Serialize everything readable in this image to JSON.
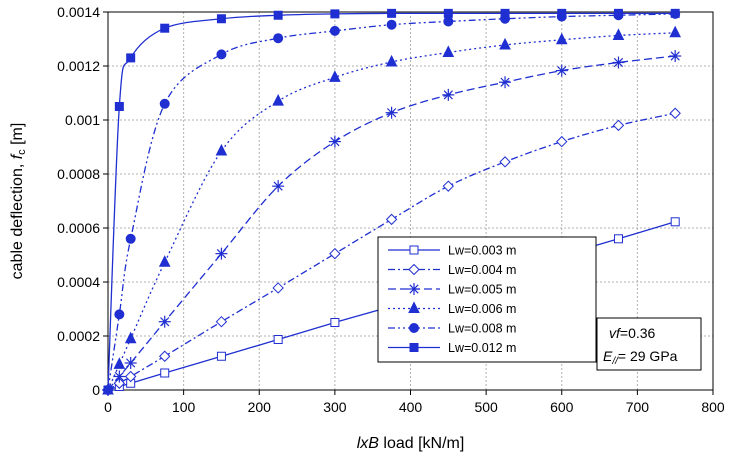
{
  "chart_data": {
    "type": "line",
    "xlabel": {
      "italic": "lxB",
      "rest": " load  [kN/m]"
    },
    "ylabel": {
      "pre": "cable deflection, ",
      "italic": "f",
      "sub": "c",
      "post": " [m]"
    },
    "xlim": [
      0,
      800
    ],
    "ylim": [
      0,
      0.0014
    ],
    "xticks": [
      "0",
      "100",
      "200",
      "300",
      "400",
      "500",
      "600",
      "700",
      "800"
    ],
    "yticks": [
      "0",
      "0.0002",
      "0.0004",
      "0.0006",
      "0.0008",
      "0.001",
      "0.0012",
      "0.0014"
    ],
    "grid": true,
    "legend_position": "inside-lower-right",
    "color": "#1f2fd1",
    "series": [
      {
        "name": "Lw=0.003 m",
        "marker": "square-open",
        "dash": "solid",
        "x": [
          0,
          15,
          30,
          75,
          150,
          225,
          300,
          375,
          450,
          525,
          600,
          675,
          750
        ],
        "y": [
          0,
          1.3e-05,
          2.5e-05,
          6.3e-05,
          0.000125,
          0.000187,
          0.00025,
          0.00031,
          0.000375,
          0.000435,
          0.000498,
          0.00056,
          0.000623
        ]
      },
      {
        "name": "Lw=0.004 m",
        "marker": "diamond-open",
        "dash": "dashdot",
        "x": [
          0,
          15,
          30,
          75,
          150,
          225,
          300,
          375,
          450,
          525,
          600,
          675,
          750
        ],
        "y": [
          0,
          2.5e-05,
          5e-05,
          0.000125,
          0.000253,
          0.000378,
          0.000505,
          0.000632,
          0.000755,
          0.000845,
          0.00092,
          0.00098,
          0.001025
        ]
      },
      {
        "name": "Lw=0.005 m",
        "marker": "star",
        "dash": "dash",
        "x": [
          0,
          15,
          30,
          75,
          150,
          225,
          300,
          375,
          450,
          525,
          600,
          675,
          750
        ],
        "y": [
          0,
          5e-05,
          0.0001,
          0.000253,
          0.000505,
          0.000755,
          0.00092,
          0.001027,
          0.001093,
          0.00114,
          0.001183,
          0.001213,
          0.001237
        ]
      },
      {
        "name": "Lw=0.006 m",
        "marker": "triangle",
        "dash": "dot",
        "x": [
          0,
          15,
          30,
          75,
          150,
          225,
          300,
          375,
          450,
          525,
          600,
          675,
          750
        ],
        "y": [
          0,
          9.5e-05,
          0.00019,
          0.000473,
          0.000885,
          0.00107,
          0.001158,
          0.001215,
          0.00125,
          0.001278,
          0.001297,
          0.001313,
          0.001323
        ]
      },
      {
        "name": "Lw=0.008 m",
        "marker": "circle",
        "dash": "dashdotdot",
        "x": [
          0,
          15,
          30,
          75,
          150,
          225,
          300,
          375,
          450,
          525,
          600,
          675,
          750
        ],
        "y": [
          0,
          0.00028,
          0.00056,
          0.00106,
          0.001243,
          0.001303,
          0.00133,
          0.001353,
          0.001365,
          0.001375,
          0.001383,
          0.001388,
          0.001393
        ]
      },
      {
        "name": "Lw=0.012 m",
        "marker": "square",
        "dash": "solid",
        "x": [
          0,
          15,
          30,
          75,
          150,
          225,
          300,
          375,
          450,
          525,
          600,
          675,
          750
        ],
        "y": [
          0,
          0.00105,
          0.00123,
          0.00134,
          0.001375,
          0.001388,
          0.001393,
          0.001395,
          0.001395,
          0.001395,
          0.001395,
          0.001395,
          0.001395
        ]
      }
    ],
    "annotation": {
      "line1": {
        "italic": "vf",
        "rest": "=0.36"
      },
      "line2": {
        "italic": "E",
        "sub": "//",
        "rest": "= 29 GPa"
      }
    }
  }
}
